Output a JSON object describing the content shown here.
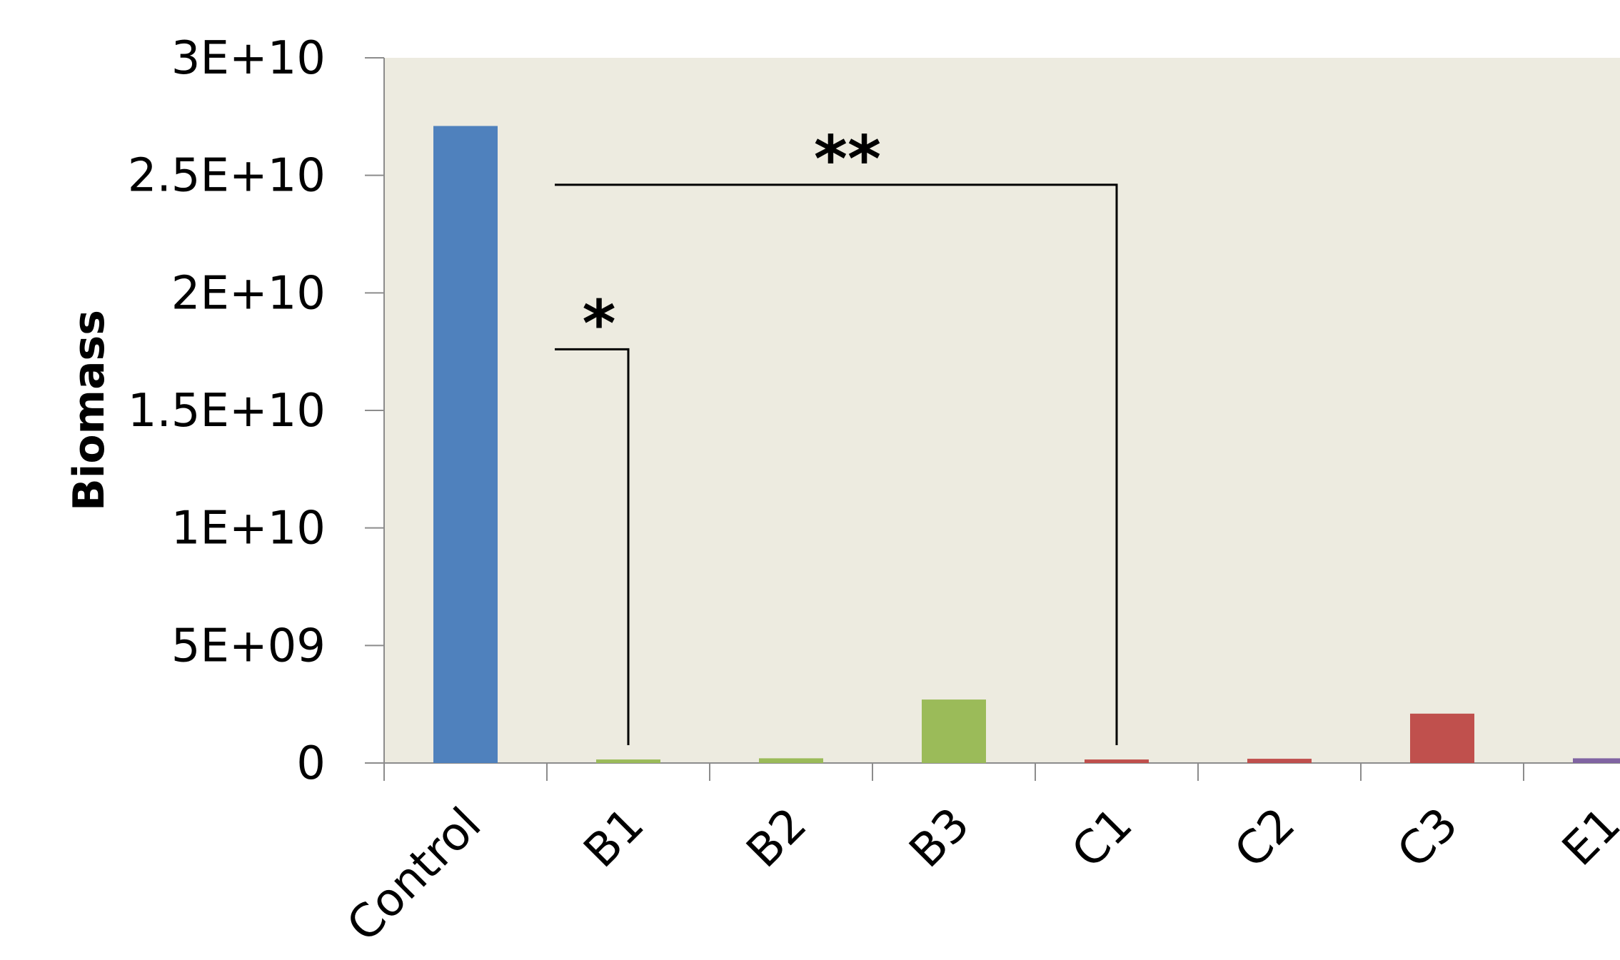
{
  "chart_data": {
    "type": "bar",
    "title": "",
    "xlabel": "",
    "ylabel": "Biomass",
    "ylim": [
      0,
      30000000000
    ],
    "yticks": [
      {
        "value": 0,
        "label": "0"
      },
      {
        "value": 5000000000,
        "label": "5E+09"
      },
      {
        "value": 10000000000,
        "label": "1E+10"
      },
      {
        "value": 15000000000,
        "label": "1.5E+10"
      },
      {
        "value": 20000000000,
        "label": "2E+10"
      },
      {
        "value": 25000000000,
        "label": "2.5E+10"
      },
      {
        "value": 30000000000,
        "label": "3E+10"
      }
    ],
    "categories": [
      "Control",
      "B1",
      "B2",
      "B3",
      "C1",
      "C2",
      "C3",
      "E1"
    ],
    "values": [
      27100000000,
      150000000,
      200000000,
      2700000000,
      150000000,
      180000000,
      2100000000,
      200000000
    ],
    "colors": [
      "#4f81bd",
      "#9bbb59",
      "#9bbb59",
      "#9bbb59",
      "#c0504d",
      "#c0504d",
      "#c0504d",
      "#8064a2"
    ],
    "plot_background": "#edebe0",
    "grid": false,
    "legend": "none",
    "annotations": [
      {
        "label": "*",
        "from": "Control",
        "to": "B1",
        "level": 17600000000
      },
      {
        "label": "**",
        "from": "Control",
        "to": "C1",
        "level": 24600000000
      }
    ]
  }
}
